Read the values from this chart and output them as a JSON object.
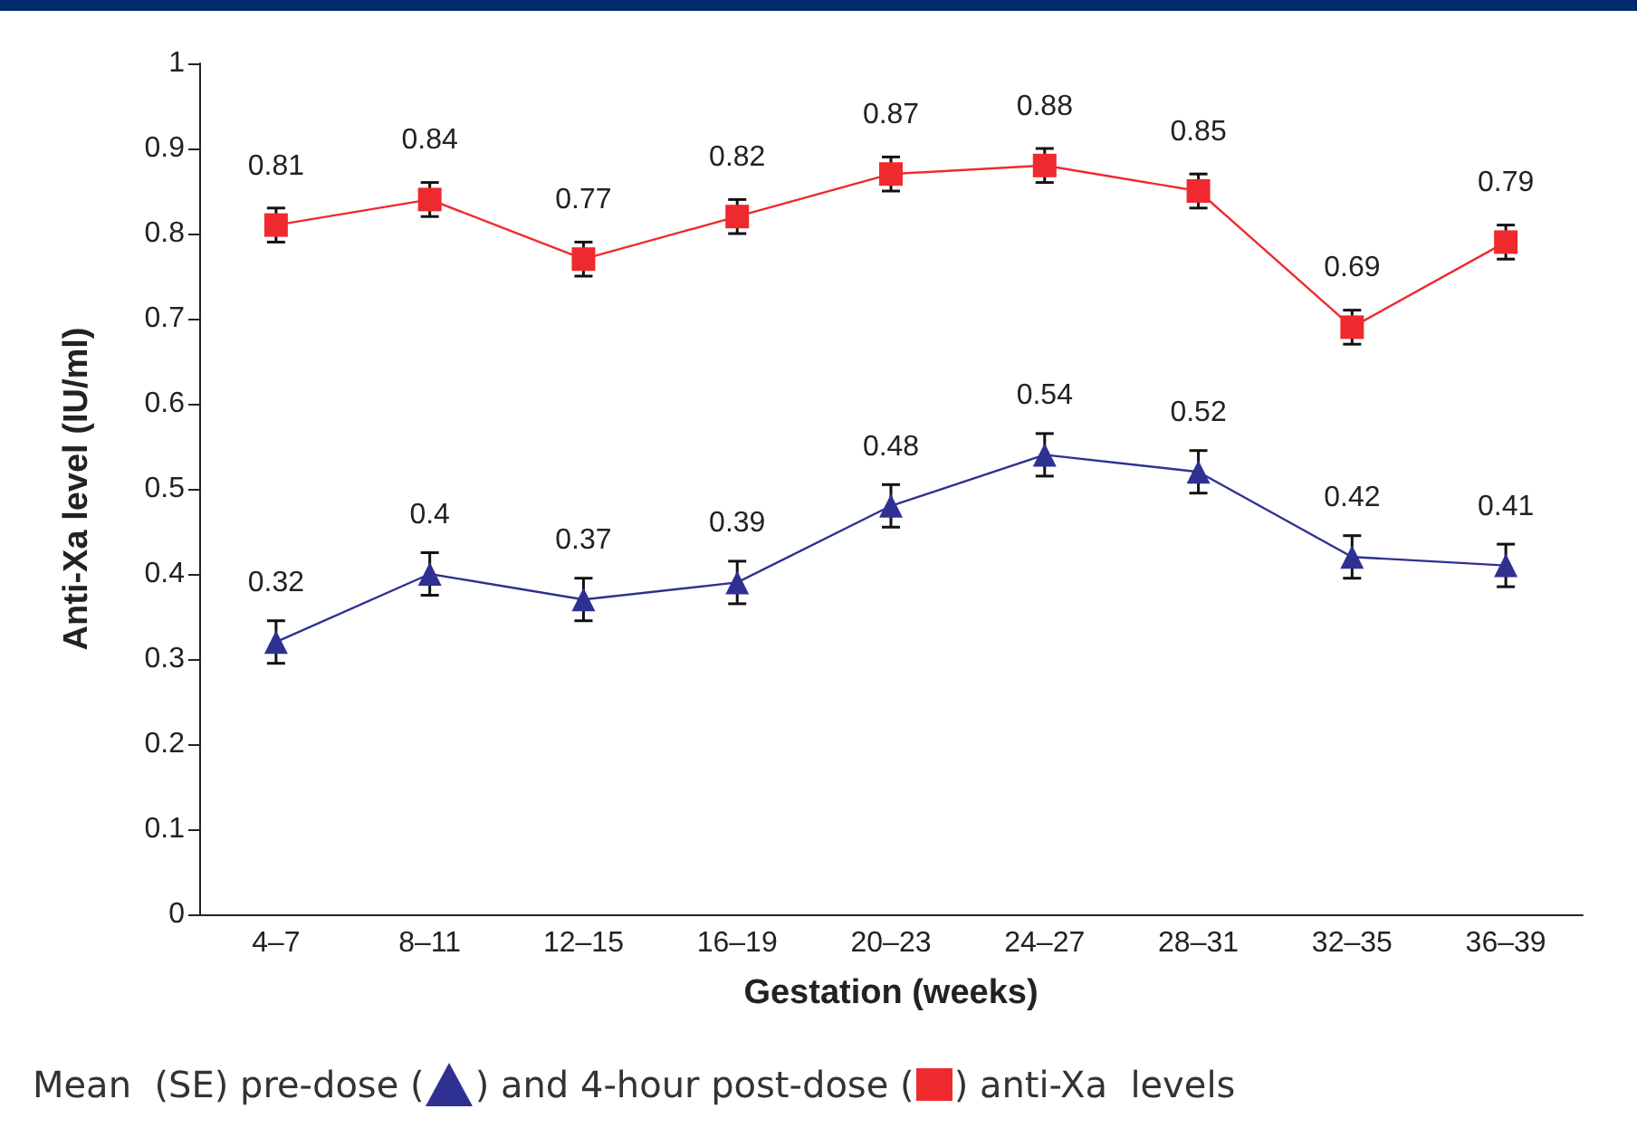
{
  "chart_data": {
    "type": "line",
    "xlabel": "Gestation (weeks)",
    "ylabel": "Anti-Xa level (IU/ml)",
    "categories": [
      "4–7",
      "8–11",
      "12–15",
      "16–19",
      "20–23",
      "24–27",
      "28–31",
      "32–35",
      "36–39"
    ],
    "series": [
      {
        "color": "#ee2a2f",
        "marker": "square",
        "values": [
          0.81,
          0.84,
          0.77,
          0.82,
          0.87,
          0.88,
          0.85,
          0.69,
          0.79
        ],
        "errors": [
          0.02,
          0.02,
          0.02,
          0.02,
          0.02,
          0.02,
          0.02,
          0.02,
          0.02
        ]
      },
      {
        "color": "#2e3192",
        "marker": "triangle",
        "values": [
          0.32,
          0.4,
          0.37,
          0.39,
          0.48,
          0.54,
          0.52,
          0.42,
          0.41
        ],
        "errors": [
          0.025,
          0.025,
          0.025,
          0.025,
          0.025,
          0.025,
          0.025,
          0.025,
          0.025
        ]
      }
    ],
    "ylim": [
      0,
      1
    ],
    "yticks": [
      0,
      0.1,
      0.2,
      0.3,
      0.4,
      0.5,
      0.6,
      0.7,
      0.8,
      0.9,
      1
    ],
    "data_labels": true,
    "grid": false,
    "annotations": [
      "Mean  (SE) pre-dose (",
      ") and 4-hour post-dose (",
      ") anti-Xa  levels"
    ]
  }
}
